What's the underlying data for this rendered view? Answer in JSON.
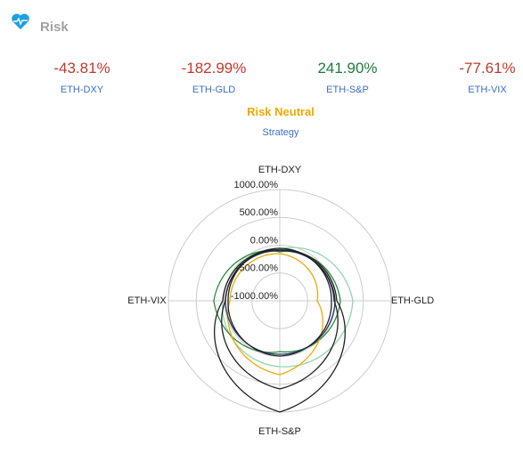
{
  "header": {
    "title": "Risk"
  },
  "stats": [
    {
      "value": "-43.81%",
      "label": "ETH-DXY",
      "color": "#c0392b"
    },
    {
      "value": "-182.99%",
      "label": "ETH-GLD",
      "color": "#c0392b"
    },
    {
      "value": "241.90%",
      "label": "ETH-S&P",
      "color": "#1e7b3c"
    },
    {
      "value": "-77.61%",
      "label": "ETH-VIX",
      "color": "#c0392b"
    }
  ],
  "status": {
    "title": "Risk Neutral",
    "subtitle": "Strategy"
  },
  "chart_data": {
    "type": "radar",
    "categories": [
      "ETH-DXY",
      "ETH-GLD",
      "ETH-S&P",
      "ETH-VIX"
    ],
    "ylim": [
      -1000,
      1000
    ],
    "yticks": [
      {
        "value": -1000,
        "label": "-1000.00%"
      },
      {
        "value": -500,
        "label": "-500.00%"
      },
      {
        "value": 0,
        "label": "0.00%"
      },
      {
        "value": 500,
        "label": "500.00%"
      },
      {
        "value": 1000,
        "label": "1000.00%"
      }
    ],
    "grid": true,
    "series": [
      {
        "color": "#8fd6b0",
        "values": [
          -72,
          312,
          184,
          24
        ]
      },
      {
        "color": "#2e8b3e",
        "values": [
          -120,
          88,
          -88,
          184
        ]
      },
      {
        "color": "#f0a800",
        "values": [
          -152,
          -328,
          328,
          -104
        ]
      },
      {
        "color": "#1f3a6e",
        "values": [
          -104,
          -8,
          -40,
          -24
        ]
      },
      {
        "color": "#222222",
        "values": [
          -56,
          -72,
          -8,
          -72
        ]
      },
      {
        "color": "#222222",
        "values": [
          -88,
          -24,
          584,
          -24
        ]
      },
      {
        "color": "#222222",
        "values": [
          -88,
          24,
          1000,
          24
        ]
      }
    ]
  }
}
